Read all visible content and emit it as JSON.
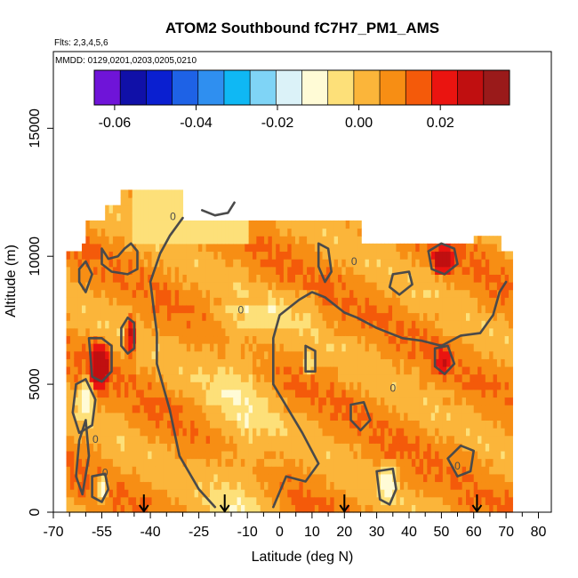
{
  "chart_data": {
    "type": "heatmap",
    "title": "ATOM2 Southbound fC7H7_PM1_AMS",
    "flights_label": "Flts: 2,3,4,5,6",
    "dates_label": "MMDD: 0129,0201,0203,0205,0210",
    "xlabel": "Latitude (deg N)",
    "ylabel": "Altitude (m)",
    "xlim": [
      -70,
      84
    ],
    "ylim": [
      0,
      18000
    ],
    "x_ticks": [
      -70,
      -55,
      -40,
      -25,
      -10,
      0,
      10,
      20,
      30,
      40,
      50,
      60,
      70,
      80
    ],
    "y_ticks": [
      0,
      5000,
      10000,
      15000
    ],
    "color_scale": {
      "range": [
        -0.065,
        0.037
      ],
      "ticks": [
        -0.06,
        -0.04,
        -0.02,
        0.0,
        0.02
      ],
      "colors": [
        "#6f14d8",
        "#1010a8",
        "#0a1fd0",
        "#1e62e6",
        "#2f8ff0",
        "#0fb8f4",
        "#7fd4f6",
        "#dbf2f8",
        "#fffbd6",
        "#fde079",
        "#fbb53a",
        "#f78e14",
        "#f45a0a",
        "#ea1410",
        "#c00f10",
        "#9a1a1a"
      ]
    },
    "grid": false,
    "colorbar_position": "top",
    "sampling_latitudes_arrows": [
      -42,
      -17,
      20,
      61
    ],
    "contour_labels": [
      {
        "text": "0",
        "lat": -54,
        "alt": 1550
      },
      {
        "text": "0",
        "lat": -57,
        "alt": 2850
      },
      {
        "text": "0",
        "lat": -12,
        "alt": 7900
      },
      {
        "text": "0",
        "lat": -33,
        "alt": 11550
      },
      {
        "text": "0",
        "lat": 23,
        "alt": 9800
      },
      {
        "text": "0",
        "lat": 35,
        "alt": 4850
      },
      {
        "text": "0",
        "lat": 55,
        "alt": 1800
      }
    ],
    "anomaly_regions": [
      {
        "sign": "positive",
        "lat_range": [
          -58,
          -53
        ],
        "alt_range": [
          5000,
          6500
        ],
        "peak": 0.03
      },
      {
        "sign": "positive",
        "lat_range": [
          -47,
          -45
        ],
        "alt_range": [
          6300,
          7500
        ],
        "peak": 0.025
      },
      {
        "sign": "positive",
        "lat_range": [
          48,
          53
        ],
        "alt_range": [
          9500,
          10200
        ],
        "peak": 0.03
      },
      {
        "sign": "positive",
        "lat_range": [
          49,
          52
        ],
        "alt_range": [
          5600,
          6300
        ],
        "peak": 0.025
      },
      {
        "sign": "negative",
        "lat_range": [
          -62,
          -58
        ],
        "alt_range": [
          3800,
          5000
        ],
        "peak": -0.01
      },
      {
        "sign": "negative",
        "lat_range": [
          -56,
          -54
        ],
        "alt_range": [
          500,
          1300
        ],
        "peak": -0.01
      },
      {
        "sign": "negative",
        "lat_range": [
          8,
          10
        ],
        "alt_range": [
          5500,
          6200
        ],
        "peak": -0.005
      },
      {
        "sign": "negative",
        "lat_range": [
          31,
          36
        ],
        "alt_range": [
          500,
          1800
        ],
        "peak": -0.01
      }
    ]
  }
}
